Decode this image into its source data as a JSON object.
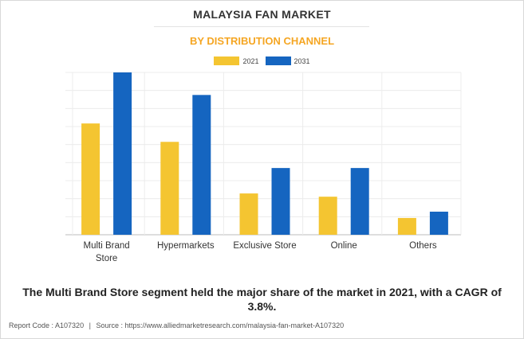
{
  "title": "MALAYSIA FAN MARKET",
  "subtitle": "BY DISTRIBUTION CHANNEL",
  "caption": "The Multi Brand Store segment held the major share of the market in 2021, with a CAGR of 3.8%.",
  "footer": {
    "report_code": "Report Code : A107320",
    "separator": "|",
    "source": "Source : https://www.alliedmarketresearch.com/malaysia-fan-market-A107320"
  },
  "colors": {
    "series_2021": "#f4c531",
    "series_2031": "#1565c0",
    "title": "#333333",
    "subtitle": "#f5a623"
  },
  "chart_data": {
    "type": "bar",
    "categories": [
      "Multi Brand Store",
      "Hypermarkets",
      "Exclusive Store",
      "Online",
      "Others"
    ],
    "category_lines": [
      [
        "Multi Brand",
        "Store"
      ],
      [
        "Hypermarkets"
      ],
      [
        "Exclusive Store"
      ],
      [
        "Online"
      ],
      [
        "Others"
      ]
    ],
    "series": [
      {
        "name": "2021",
        "values": [
          61.7,
          51.5,
          22.9,
          21.1,
          9.3
        ]
      },
      {
        "name": "2031",
        "values": [
          90.0,
          77.5,
          37.0,
          37.0,
          12.8
        ]
      }
    ],
    "ylim": [
      0,
      90
    ],
    "grid": true,
    "legend_position": "top-center",
    "xlabel": "",
    "ylabel": ""
  }
}
